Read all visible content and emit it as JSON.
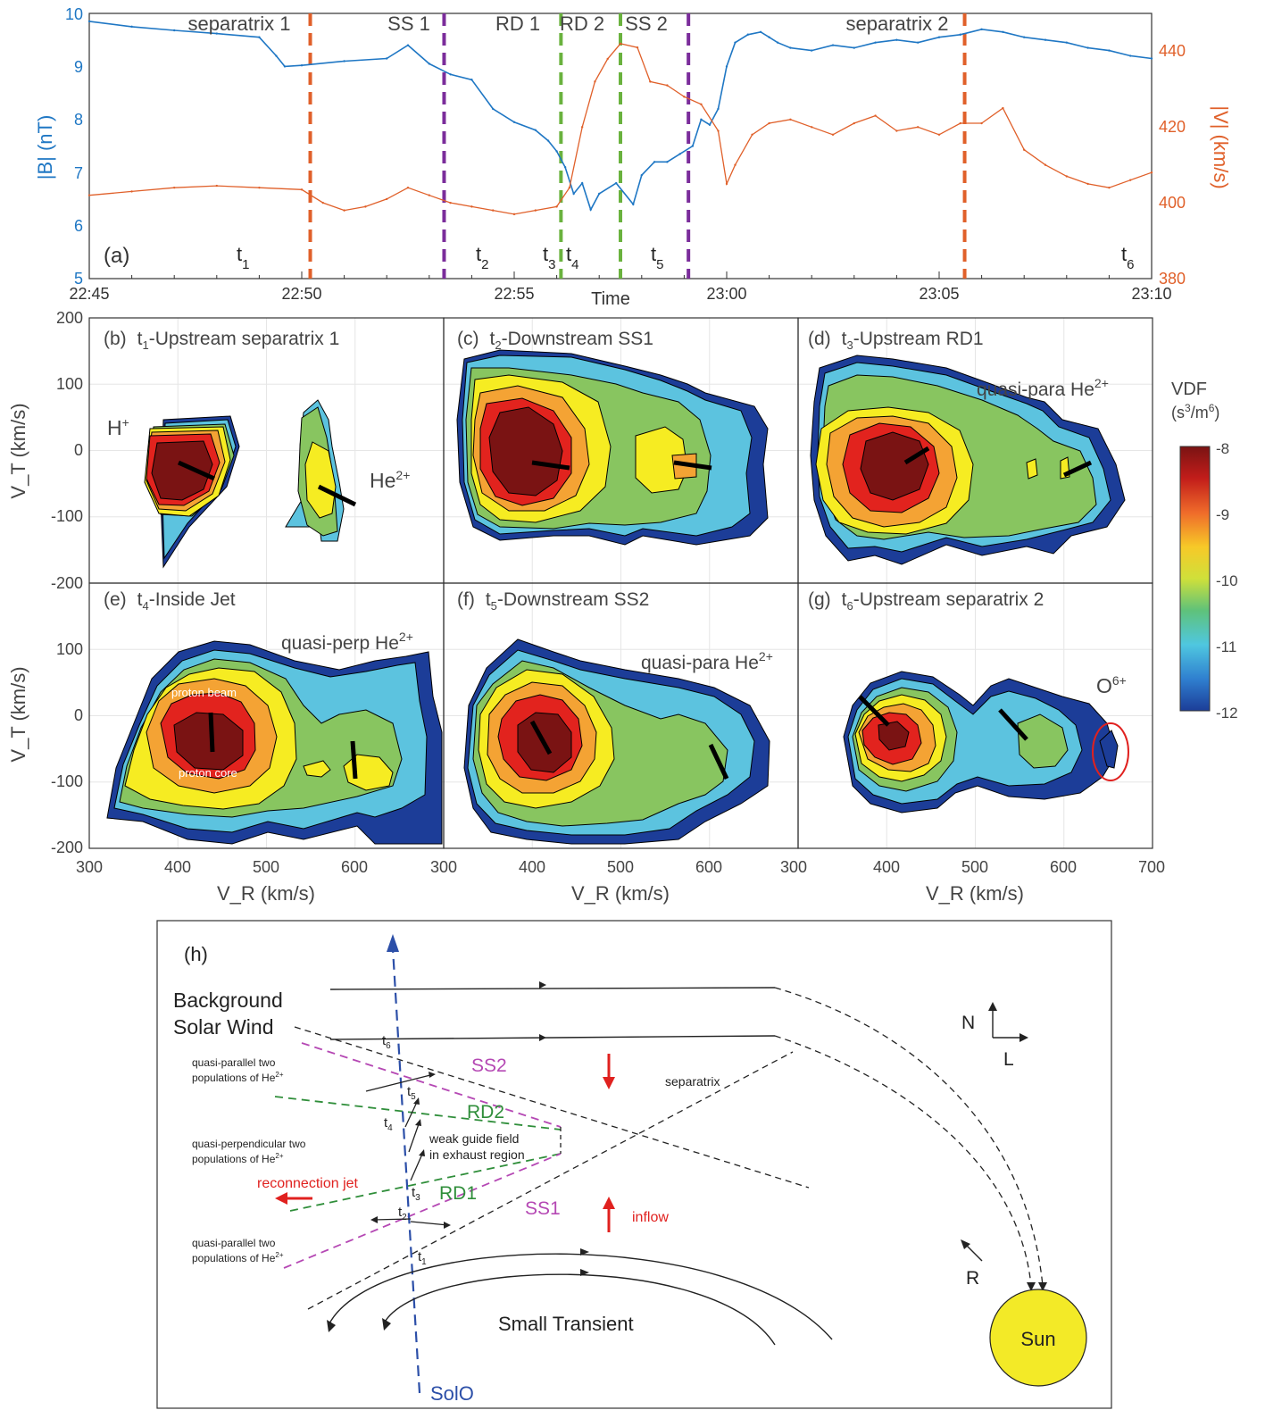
{
  "panel_a": {
    "label": "(a)",
    "ylabel_left": "|B| (nT)",
    "ylabel_right": "|V| (km/s)",
    "xlabel": "Time",
    "x_ticks": [
      "22:45",
      "22:50",
      "22:55",
      "23:00",
      "23:05",
      "23:10"
    ],
    "y_left_ticks": [
      "5",
      "6",
      "7",
      "8",
      "9",
      "10"
    ],
    "y_right_ticks": [
      "380",
      "400",
      "420",
      "440"
    ],
    "y_left_range": [
      5,
      10
    ],
    "y_right_range": [
      380,
      450
    ],
    "x_range_minutes": [
      0,
      25
    ],
    "colors": {
      "B": "#1f77c4",
      "V": "#e0602a",
      "separatrix_line": "#e0602a",
      "ss_line": "#7b2d9b",
      "rd_line": "#6ab23e"
    },
    "region_labels": [
      "separatrix 1",
      "SS 1",
      "RD 1",
      "RD 2",
      "SS 2",
      "separatrix 2"
    ],
    "time_markers": [
      {
        "name": "t",
        "sub": "1"
      },
      {
        "name": "t",
        "sub": "2"
      },
      {
        "name": "t",
        "sub": "3"
      },
      {
        "name": "t",
        "sub": "4"
      },
      {
        "name": "t",
        "sub": "5"
      },
      {
        "name": "t",
        "sub": "6"
      }
    ]
  },
  "chart_data": [
    {
      "type": "line",
      "title": "",
      "xlabel": "Time",
      "ylabel": "|B| (nT)",
      "ylim": [
        5,
        10
      ],
      "x_unit": "minutes after 22:45",
      "series": [
        {
          "name": "|B|",
          "x": [
            0,
            1,
            2,
            3,
            4,
            4.4,
            4.6,
            5,
            6,
            7,
            7.5,
            8,
            8.5,
            9,
            9.5,
            10,
            10.5,
            10.8,
            11,
            11.2,
            11.4,
            11.6,
            11.8,
            12,
            12.4,
            12.8,
            13,
            13.3,
            13.6,
            13.9,
            14.2,
            14.4,
            14.6,
            14.8,
            15,
            15.2,
            15.5,
            15.8,
            16,
            16.2,
            16.5,
            17,
            17.5,
            18,
            18.5,
            19,
            19.5,
            20,
            20.5,
            21,
            21.5,
            22,
            22.5,
            23,
            23.5,
            24,
            24.5,
            25
          ],
          "values": [
            9.85,
            9.75,
            9.68,
            9.62,
            9.55,
            9.2,
            9.0,
            9.02,
            9.1,
            9.15,
            9.4,
            9.05,
            8.85,
            8.75,
            8.2,
            7.95,
            7.8,
            7.6,
            7.4,
            7.1,
            6.6,
            6.8,
            6.3,
            6.6,
            6.8,
            6.4,
            6.95,
            7.2,
            7.2,
            7.35,
            7.5,
            8.0,
            7.9,
            8.2,
            9.0,
            9.45,
            9.6,
            9.65,
            9.55,
            9.45,
            9.35,
            9.3,
            9.4,
            9.35,
            9.45,
            9.5,
            9.45,
            9.55,
            9.6,
            9.7,
            9.65,
            9.55,
            9.5,
            9.45,
            9.35,
            9.3,
            9.2,
            9.15
          ]
        }
      ]
    },
    {
      "type": "line",
      "title": "",
      "xlabel": "Time",
      "ylabel": "|V| (km/s)",
      "ylim": [
        380,
        450
      ],
      "x_unit": "minutes after 22:45",
      "series": [
        {
          "name": "|V|",
          "x": [
            0,
            1,
            2,
            3,
            4,
            5,
            5.5,
            6,
            6.5,
            7,
            7.5,
            8,
            8.5,
            9,
            9.5,
            10,
            10.5,
            11,
            11.3,
            11.6,
            11.9,
            12.2,
            12.5,
            12.9,
            13.2,
            13.6,
            14,
            14.4,
            14.8,
            15,
            15.2,
            15.6,
            16,
            16.5,
            17,
            17.5,
            18,
            18.5,
            19,
            19.5,
            20,
            20.5,
            21,
            21.5,
            22,
            22.5,
            23,
            23.5,
            24,
            24.5,
            25
          ],
          "values": [
            402,
            403,
            404,
            404.5,
            404,
            403.5,
            400,
            398,
            399,
            401,
            404,
            402,
            400,
            399,
            398,
            397,
            398,
            399,
            404,
            420,
            432,
            438,
            442,
            441,
            432,
            431,
            428,
            426,
            419,
            405,
            410,
            418,
            421,
            422,
            420,
            418,
            421,
            423,
            419,
            420,
            418,
            421,
            421,
            425,
            414,
            410,
            407,
            405,
            404,
            406,
            408
          ]
        }
      ]
    },
    {
      "type": "heatmap",
      "title": "(b) t1-Upstream separatrix 1",
      "xlabel": "V_R (km/s)",
      "ylabel": "V_T (km/s)",
      "xlim": [
        300,
        700
      ],
      "ylim": [
        -200,
        200
      ],
      "colorbar": {
        "title": "VDF",
        "unit": "(s3/m6)",
        "range": [
          -12,
          -8
        ],
        "ticks": [
          -8,
          -9,
          -10,
          -11,
          -12
        ]
      },
      "populations": [
        {
          "name": "H+",
          "center": [
            415,
            -45
          ],
          "peak": -8,
          "orientation_line": [
            [
              405,
              -20
            ],
            [
              445,
              -45
            ]
          ]
        },
        {
          "name": "He2+",
          "center": [
            565,
            -60
          ],
          "peak": -9.5,
          "orientation_line": [
            [
              545,
              -60
            ],
            [
              600,
              -85
            ]
          ]
        }
      ]
    },
    {
      "type": "heatmap",
      "title": "(c) t2-Downstream SS1",
      "xlabel": "V_R (km/s)",
      "ylabel": "V_T (km/s)",
      "xlim": [
        300,
        700
      ],
      "ylim": [
        -200,
        200
      ],
      "populations": [
        {
          "name": "proton",
          "center": [
            420,
            -25
          ],
          "peak": -8,
          "orientation_line": [
            [
              400,
              -20
            ],
            [
              440,
              -28
            ]
          ]
        },
        {
          "name": "He2+",
          "center": [
            570,
            -25
          ],
          "peak": -9,
          "orientation_line": [
            [
              555,
              -20
            ],
            [
              600,
              -30
            ]
          ]
        }
      ]
    },
    {
      "type": "heatmap",
      "title": "(d) t3-Upstream RD1",
      "xlabel": "V_R (km/s)",
      "ylabel": "V_T (km/s)",
      "xlim": [
        300,
        700
      ],
      "ylim": [
        -200,
        200
      ],
      "annotation": "quasi-para He2+",
      "populations": [
        {
          "name": "proton",
          "center": [
            420,
            -30
          ],
          "peak": -8,
          "orientation_line": [
            [
              420,
              -20
            ],
            [
              450,
              0
            ]
          ]
        },
        {
          "name": "He2+",
          "center": [
            605,
            -30
          ],
          "peak": -10,
          "orientation_line": [
            [
              595,
              -40
            ],
            [
              625,
              -20
            ]
          ]
        }
      ]
    },
    {
      "type": "heatmap",
      "title": "(e) t4-Inside Jet",
      "xlabel": "V_R (km/s)",
      "ylabel": "V_T (km/s)",
      "xlim": [
        300,
        700
      ],
      "ylim": [
        -200,
        200
      ],
      "annotation": "quasi-perp He2+",
      "labels": [
        "proton beam",
        "proton core"
      ],
      "populations": [
        {
          "name": "proton",
          "center": [
            440,
            -50
          ],
          "peak": -8,
          "orientation_line": [
            [
              438,
              0
            ],
            [
              440,
              -55
            ]
          ]
        },
        {
          "name": "He2+",
          "center": [
            600,
            -85
          ],
          "peak": -9.5,
          "orientation_line": [
            [
              598,
              -40
            ],
            [
              600,
              -100
            ]
          ]
        }
      ]
    },
    {
      "type": "heatmap",
      "title": "(f) t5-Downstream SS2",
      "xlabel": "V_R (km/s)",
      "ylabel": "V_T (km/s)",
      "xlim": [
        300,
        700
      ],
      "ylim": [
        -200,
        200
      ],
      "annotation": "quasi-para He2+",
      "populations": [
        {
          "name": "proton",
          "center": [
            430,
            -45
          ],
          "peak": -8,
          "orientation_line": [
            [
              400,
              -10
            ],
            [
              420,
              -55
            ]
          ]
        },
        {
          "name": "He2+",
          "center": [
            610,
            -80
          ],
          "peak": -10,
          "orientation_line": [
            [
              600,
              -50
            ],
            [
              620,
              -95
            ]
          ]
        }
      ]
    },
    {
      "type": "heatmap",
      "title": "(g) t6-Upstream separatrix 2",
      "xlabel": "V_R (km/s)",
      "ylabel": "V_T (km/s)",
      "xlim": [
        300,
        700
      ],
      "ylim": [
        -200,
        200
      ],
      "annotation": "O6+",
      "populations": [
        {
          "name": "proton",
          "center": [
            400,
            -25
          ],
          "peak": -8,
          "orientation_line": [
            [
              375,
              20
            ],
            [
              400,
              -15
            ]
          ]
        },
        {
          "name": "He2+",
          "center": [
            565,
            -55
          ],
          "peak": -10,
          "orientation_line": [
            [
              530,
              -10
            ],
            [
              560,
              -40
            ]
          ]
        },
        {
          "name": "O6+",
          "center": [
            655,
            -60
          ],
          "peak": -11.5
        }
      ]
    }
  ],
  "panels_vdf": {
    "ylabel": "V_T (km/s)",
    "xlabel": "V_R (km/s)",
    "y_ticks": [
      "200",
      "100",
      "0",
      "-100",
      "-200"
    ],
    "x_ticks_row": [
      "300",
      "400",
      "500",
      "600"
    ],
    "x_ticks_last": [
      "300",
      "400",
      "500",
      "600",
      "700"
    ],
    "b": {
      "label": "(b)",
      "t": "t",
      "sub": "1",
      "text": "-Upstream separatrix 1",
      "h": "H",
      "hsup": "+",
      "he": "He",
      "hesup": "2+"
    },
    "c": {
      "label": "(c)",
      "t": "t",
      "sub": "2",
      "text": "-Downstream SS1"
    },
    "d": {
      "label": "(d)",
      "t": "t",
      "sub": "3",
      "text": "-Upstream RD1",
      "ann": "quasi-para He",
      "annsup": "2+"
    },
    "e": {
      "label": "(e)",
      "t": "t",
      "sub": "4",
      "text": "-Inside Jet",
      "ann": "quasi-perp He",
      "annsup": "2+",
      "beam": "proton beam",
      "core": "proton core"
    },
    "f": {
      "label": "(f)",
      "t": "t",
      "sub": "5",
      "text": "-Downstream SS2",
      "ann": "quasi-para He",
      "annsup": "2+"
    },
    "g": {
      "label": "(g)",
      "t": "t",
      "sub": "6",
      "text": "-Upstream separatrix 2",
      "ann": "O",
      "annsup": "6+"
    },
    "colorbar": {
      "title": "VDF",
      "unit": "(s",
      "unit_sup1": "3",
      "unit_mid": "/m",
      "unit_sup2": "6",
      "unit_end": ")",
      "ticks": [
        "-8",
        "-9",
        "-10",
        "-11",
        "-12"
      ]
    },
    "palette": [
      "#1c3d98",
      "#3a78c8",
      "#5cc3df",
      "#88c560",
      "#f6ec22",
      "#f4a334",
      "#e2231e",
      "#7a1313"
    ]
  },
  "panel_h": {
    "label": "(h)",
    "bg1": "Background",
    "bg2": "Solar Wind",
    "n": "N",
    "l": "L",
    "r": "R",
    "sun": "Sun",
    "solo": "SolO",
    "small_transient": "Small Transient",
    "separatrix": "separatrix",
    "ss2": "SS2",
    "rd2": "RD2",
    "rd1": "RD1",
    "ss1": "SS1",
    "inflow": "inflow",
    "jet": "reconnection jet",
    "guide1": "weak guide field",
    "guide2": "in exhaust region",
    "qpar_top1": "quasi-parallel two",
    "qpar_top2": "populations of He",
    "qperp1": "quasi-perpendicular two",
    "qperp2": "populations of He",
    "qpar_bot1": "quasi-parallel two",
    "qpar_bot2": "populations of He",
    "he_sup": "2+",
    "t_labels": [
      "6",
      "5",
      "4",
      "3",
      "2",
      "1"
    ],
    "colors": {
      "ss": "#b548b4",
      "rd": "#2f8e3a",
      "red": "#e0211f",
      "solo": "#2c4fa8",
      "sun": "#f3ea27"
    }
  }
}
